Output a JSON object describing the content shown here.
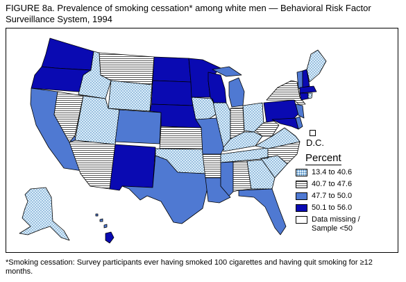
{
  "title": "FIGURE 8a. Prevalence of smoking cessation* among white men  — Behavioral Risk Factor Surveillance System, 1994",
  "footnote": "*Smoking cessation: Survey participants ever having smoked 100 cigarettes and having quit smoking for ≥12 months.",
  "dc_label": "D.C.",
  "legend": {
    "title": "Percent",
    "items": [
      {
        "key": "dotted",
        "label": "13.4 to 40.6",
        "fill": "#dbeefa"
      },
      {
        "key": "striped",
        "label": "40.7 to 47.6",
        "fill": "#dcdcdc"
      },
      {
        "key": "medium",
        "label": "47.7 to 50.0",
        "fill": "#4f79d2"
      },
      {
        "key": "dark",
        "label": "50.1 to 56.0",
        "fill": "#0a0ab2"
      },
      {
        "key": "missing",
        "label": "Data missing / Sample <50",
        "fill": "#ffffff"
      }
    ]
  },
  "colors": {
    "dotted": "#dbeefa",
    "striped": "#dcdcdc",
    "medium": "#4f79d2",
    "dark": "#0a0ab2",
    "missing": "#ffffff",
    "border": "#000000"
  }
}
